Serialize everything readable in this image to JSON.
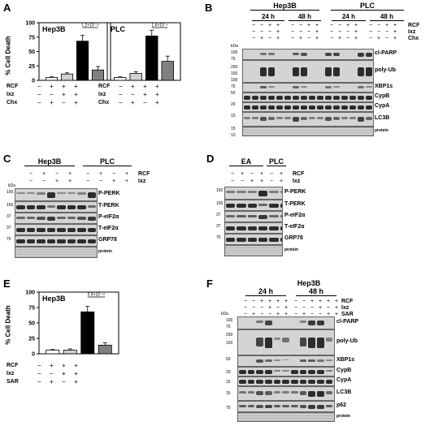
{
  "panels": {
    "A": {
      "label": "A",
      "ylabel": "% Cell Death",
      "yticks": [
        "0",
        "25",
        "50",
        "75",
        "100"
      ],
      "row_labels": [
        "RCF",
        "Ixz",
        "Chx"
      ],
      "hep3b": {
        "title": "Hep3B",
        "pvalue": "1.2×10⁻¹²",
        "signs": [
          [
            "−",
            "+",
            "+",
            "+"
          ],
          [
            "−",
            "−",
            "+",
            "+"
          ],
          [
            "−",
            "+",
            "−",
            "+"
          ]
        ]
      },
      "plc": {
        "title": "PLC",
        "pvalue": "1.6×10⁻⁶",
        "signs": [
          [
            "−",
            "+",
            "+",
            "+"
          ],
          [
            "−",
            "−",
            "+",
            "+"
          ],
          [
            "−",
            "+",
            "−",
            "+"
          ]
        ]
      }
    },
    "B": {
      "label": "B",
      "cell_lines": [
        "Hep3B",
        "PLC"
      ],
      "timepoints": [
        "24 h",
        "48 h",
        "24 h",
        "48 h"
      ],
      "kda_label": "kDa",
      "treatments": [
        "RCF",
        "Ixz",
        "Chx"
      ],
      "rows": [
        "cl-PARP",
        "poly-Ub",
        "XBP1s",
        "CypB",
        "CypA",
        "LC3B",
        "protein"
      ],
      "lc3b_marks": [
        "I",
        "II"
      ],
      "kda": [
        "100",
        "75",
        "250",
        "150",
        "100",
        "75",
        "50",
        "20",
        "15",
        "15",
        "10"
      ]
    },
    "C": {
      "label": "C",
      "cell_lines": [
        "Hep3B",
        "PLC"
      ],
      "kda_label": "kDa",
      "treatments": [
        "RCF",
        "Ixz"
      ],
      "rows": [
        "P-PERK",
        "T-PERK",
        "P-eIF2α",
        "T-eIF2α",
        "GRP78",
        "protein"
      ],
      "kda": [
        "150",
        "150",
        "37",
        "37",
        "75"
      ]
    },
    "D": {
      "label": "D",
      "cell_lines": [
        "EA",
        "PLC"
      ],
      "treatments": [
        "RCF",
        "Ixz"
      ],
      "rows": [
        "P-PERK",
        "T-PERK",
        "P-eIF2α",
        "T-eIF2α",
        "GRP78",
        "protein"
      ],
      "kda": [
        "150",
        "150",
        "37",
        "37",
        "75"
      ]
    },
    "E": {
      "label": "E",
      "title": "Hep3B",
      "ylabel": "% Cell Death",
      "yticks": [
        "0",
        "25",
        "50",
        "75",
        "100"
      ],
      "pvalue": "5.9×10⁻¹⁵",
      "row_labels": [
        "RCF",
        "Ixz",
        "SAR"
      ],
      "signs": [
        [
          "−",
          "+",
          "+",
          "+"
        ],
        [
          "−",
          "−",
          "+",
          "+"
        ],
        [
          "−",
          "+",
          "−",
          "+"
        ]
      ]
    },
    "F": {
      "label": "F",
      "cell_line": "Hep3B",
      "timepoints": [
        "24 h",
        "48 h"
      ],
      "kda_label": "kDa",
      "treatments": [
        "RCF",
        "Ixz",
        "SAR"
      ],
      "rows": [
        "cl-PARP",
        "poly-Ub",
        "XBP1s",
        "CypB",
        "CypA",
        "LC3B",
        "p62",
        "protein"
      ],
      "lc3b_marks": [
        "I",
        "II"
      ],
      "kda": [
        "100",
        "75",
        "250",
        "150",
        "50",
        "20",
        "15",
        "15",
        "75"
      ]
    }
  },
  "chart_data": [
    {
      "type": "bar",
      "title": "Hep3B",
      "ylabel": "% Cell Death",
      "ylim": [
        0,
        100
      ],
      "categories": [
        "control",
        "RCF+Chx",
        "RCF+Ixz",
        "RCF+Ixz+Chx"
      ],
      "values": [
        5,
        11,
        68,
        18
      ],
      "errors": [
        1,
        2,
        10,
        6
      ],
      "colors": [
        "#ffffff",
        "#d0d0d0",
        "#000000",
        "#808080"
      ]
    },
    {
      "type": "bar",
      "title": "PLC",
      "ylabel": "% Cell Death",
      "ylim": [
        0,
        100
      ],
      "categories": [
        "control",
        "RCF+Chx",
        "RCF+Ixz",
        "RCF+Ixz+Chx"
      ],
      "values": [
        5,
        12,
        77,
        33
      ],
      "errors": [
        1,
        3,
        10,
        9
      ],
      "colors": [
        "#ffffff",
        "#d0d0d0",
        "#000000",
        "#808080"
      ]
    },
    {
      "type": "bar",
      "title": "Hep3B",
      "ylabel": "% Cell Death",
      "ylim": [
        0,
        100
      ],
      "categories": [
        "control",
        "RCF+SAR",
        "RCF+Ixz",
        "RCF+Ixz+SAR"
      ],
      "values": [
        6,
        6,
        68,
        14
      ],
      "errors": [
        1,
        2,
        9,
        4
      ],
      "colors": [
        "#ffffff",
        "#d0d0d0",
        "#000000",
        "#808080"
      ]
    }
  ]
}
